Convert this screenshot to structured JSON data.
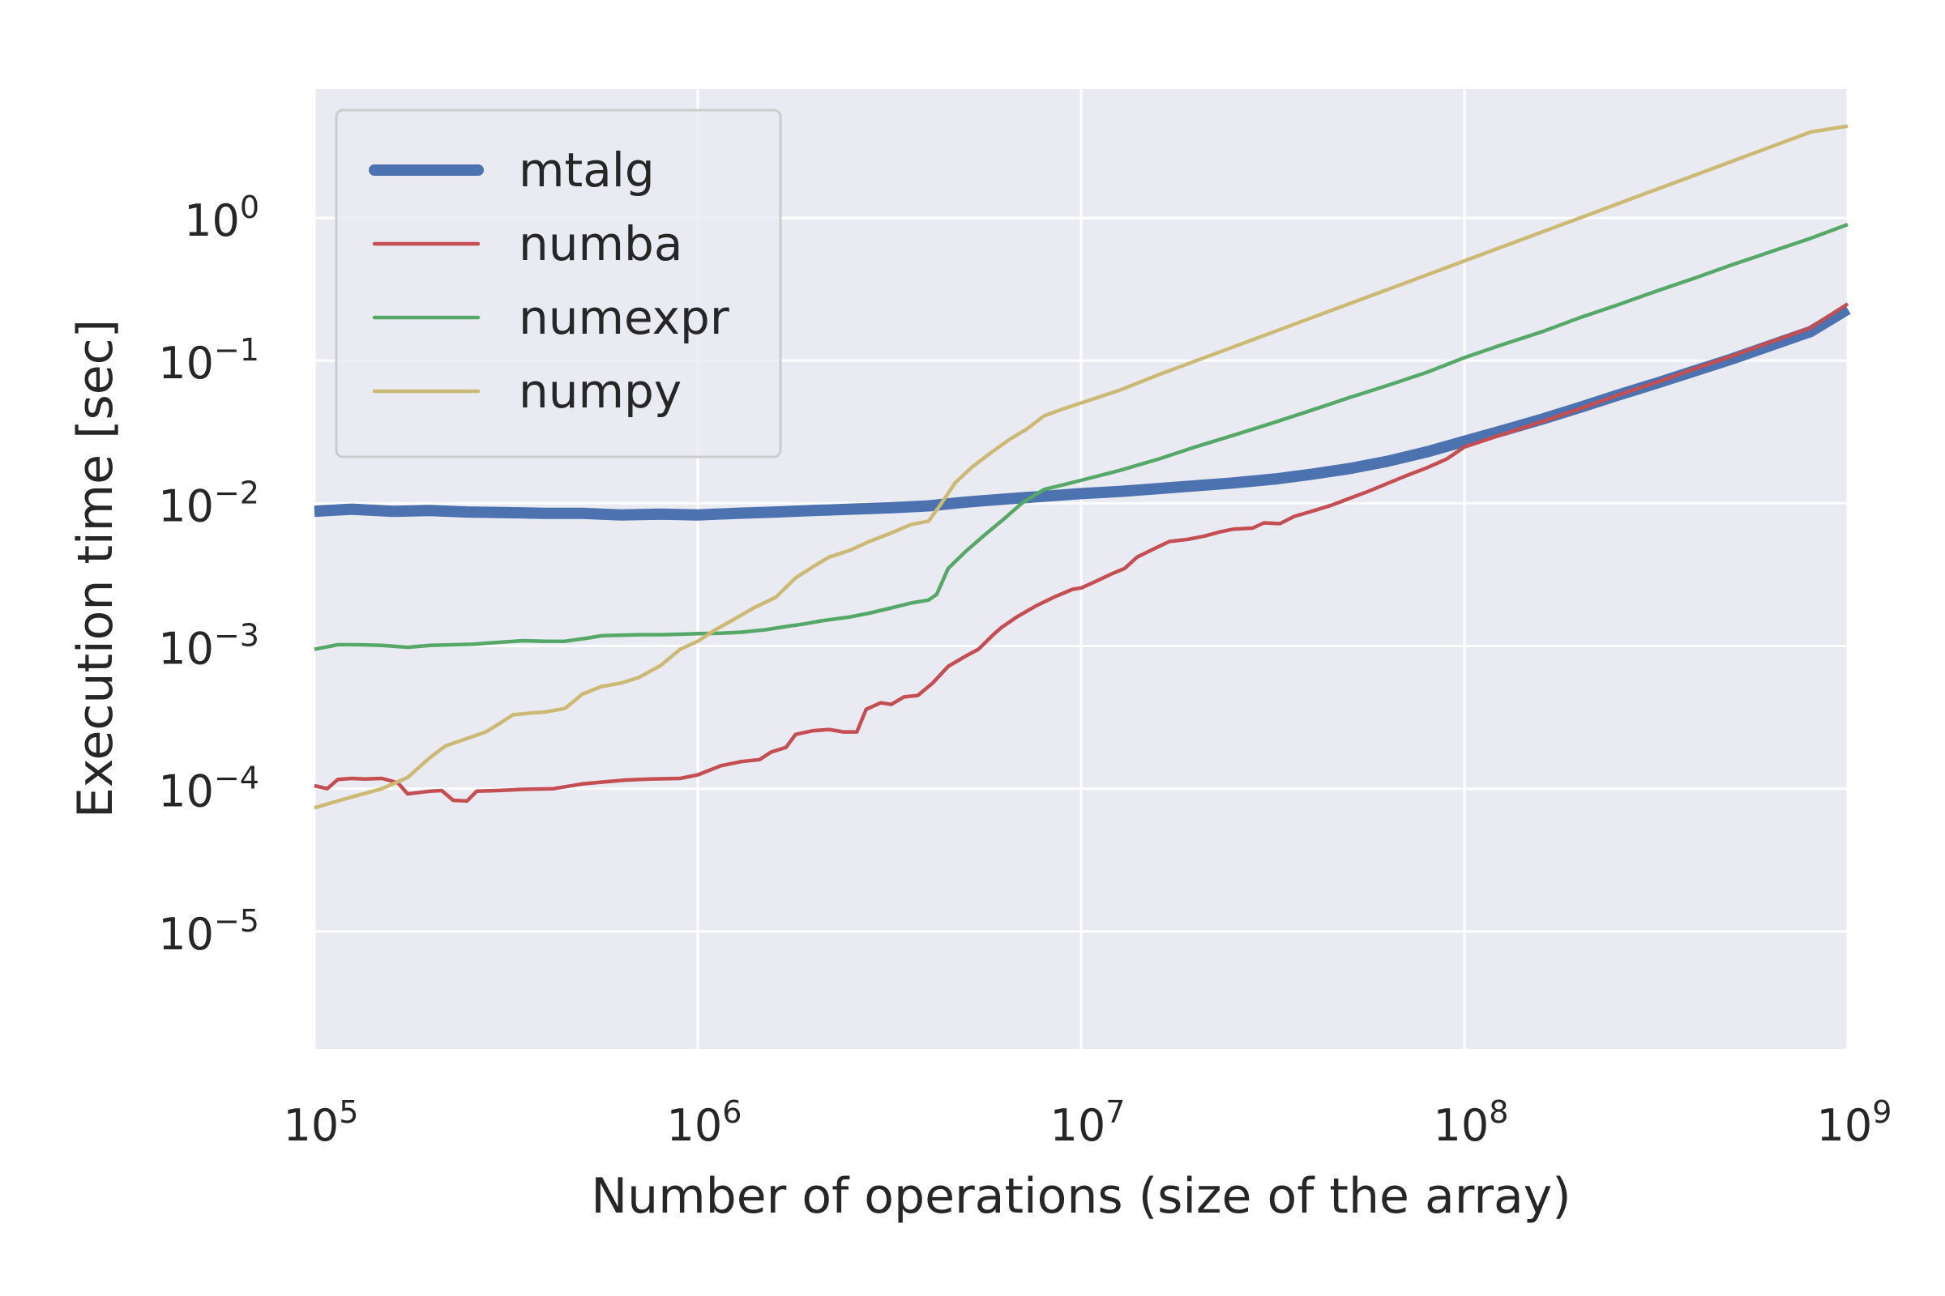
{
  "chart_data": {
    "type": "line",
    "title": "",
    "xlabel": "Number of operations (size of the array)",
    "ylabel": "Execution time [sec]",
    "xscale": "log",
    "yscale": "log",
    "xlim": [
      100000,
      1000000000
    ],
    "ylim": [
      1.5e-06,
      8
    ],
    "grid": true,
    "legend_position": "top-left",
    "x_ticks": [
      {
        "value": 100000,
        "base": "10",
        "exp": "5"
      },
      {
        "value": 1000000,
        "base": "10",
        "exp": "6"
      },
      {
        "value": 10000000,
        "base": "10",
        "exp": "7"
      },
      {
        "value": 100000000,
        "base": "10",
        "exp": "8"
      },
      {
        "value": 1000000000,
        "base": "10",
        "exp": "9"
      }
    ],
    "y_ticks": [
      {
        "value": 1e-05,
        "base": "10",
        "exp": "−5"
      },
      {
        "value": 0.0001,
        "base": "10",
        "exp": "−4"
      },
      {
        "value": 0.001,
        "base": "10",
        "exp": "−3"
      },
      {
        "value": 0.01,
        "base": "10",
        "exp": "−2"
      },
      {
        "value": 0.1,
        "base": "10",
        "exp": "−1"
      },
      {
        "value": 1,
        "base": "10",
        "exp": "0"
      }
    ],
    "series": [
      {
        "name": "mtalg",
        "color": "#4c72b0",
        "width": "thick",
        "points": [
          [
            100000,
            0.0088
          ],
          [
            125000,
            0.0091
          ],
          [
            160000,
            0.0088
          ],
          [
            200000,
            0.0089
          ],
          [
            250000,
            0.0087
          ],
          [
            320000,
            0.0086
          ],
          [
            400000,
            0.0085
          ],
          [
            500000,
            0.0085
          ],
          [
            630000,
            0.0083
          ],
          [
            800000,
            0.0084
          ],
          [
            1000000,
            0.0083
          ],
          [
            1260000,
            0.0085
          ],
          [
            1600000,
            0.0087
          ],
          [
            2000000,
            0.0089
          ],
          [
            2500000,
            0.0091
          ],
          [
            3200000,
            0.0093
          ],
          [
            4000000,
            0.0096
          ],
          [
            5000000,
            0.0102
          ],
          [
            6300000,
            0.0107
          ],
          [
            8000000,
            0.0112
          ],
          [
            10000000,
            0.0117
          ],
          [
            12600000,
            0.0121
          ],
          [
            16000000,
            0.0127
          ],
          [
            20000000,
            0.0133
          ],
          [
            25000000,
            0.0139
          ],
          [
            32000000,
            0.0148
          ],
          [
            40000000,
            0.016
          ],
          [
            50000000,
            0.0175
          ],
          [
            63000000,
            0.0197
          ],
          [
            80000000,
            0.023
          ],
          [
            100000000,
            0.0272
          ],
          [
            126000000,
            0.0324
          ],
          [
            160000000,
            0.039
          ],
          [
            200000000,
            0.047
          ],
          [
            250000000,
            0.057
          ],
          [
            320000000,
            0.07
          ],
          [
            400000000,
            0.085
          ],
          [
            500000000,
            0.103
          ],
          [
            630000000,
            0.128
          ],
          [
            800000000,
            0.16
          ],
          [
            1000000000,
            0.23
          ]
        ]
      },
      {
        "name": "numba",
        "color": "#c44e52",
        "width": "thin",
        "points": [
          [
            100000,
            0.000105
          ],
          [
            108000,
            0.0001
          ],
          [
            115000,
            0.000116
          ],
          [
            125000,
            0.000118
          ],
          [
            135000,
            0.000117
          ],
          [
            150000,
            0.000118
          ],
          [
            165000,
            0.00011
          ],
          [
            175000,
            9.2e-05
          ],
          [
            200000,
            9.6e-05
          ],
          [
            215000,
            9.7e-05
          ],
          [
            230000,
            8.3e-05
          ],
          [
            250000,
            8.2e-05
          ],
          [
            265000,
            9.6e-05
          ],
          [
            300000,
            9.7e-05
          ],
          [
            350000,
            9.9e-05
          ],
          [
            420000,
            0.0001
          ],
          [
            500000,
            0.000108
          ],
          [
            580000,
            0.000112
          ],
          [
            650000,
            0.000115
          ],
          [
            750000,
            0.000117
          ],
          [
            900000,
            0.000118
          ],
          [
            1000000,
            0.000125
          ],
          [
            1150000,
            0.000145
          ],
          [
            1300000,
            0.000155
          ],
          [
            1450000,
            0.00016
          ],
          [
            1550000,
            0.00018
          ],
          [
            1700000,
            0.000195
          ],
          [
            1800000,
            0.00024
          ],
          [
            2000000,
            0.000255
          ],
          [
            2200000,
            0.00026
          ],
          [
            2400000,
            0.00025
          ],
          [
            2600000,
            0.00025
          ],
          [
            2750000,
            0.00036
          ],
          [
            3000000,
            0.0004
          ],
          [
            3200000,
            0.00039
          ],
          [
            3450000,
            0.00044
          ],
          [
            3750000,
            0.00045
          ],
          [
            4100000,
            0.00055
          ],
          [
            4500000,
            0.00072
          ],
          [
            5000000,
            0.00085
          ],
          [
            5400000,
            0.00095
          ],
          [
            5900000,
            0.0012
          ],
          [
            6200000,
            0.00135
          ],
          [
            6800000,
            0.0016
          ],
          [
            7600000,
            0.0019
          ],
          [
            8500000,
            0.0022
          ],
          [
            9500000,
            0.0025
          ],
          [
            10000000,
            0.00255
          ],
          [
            10800000,
            0.0028
          ],
          [
            12000000,
            0.0032
          ],
          [
            13000000,
            0.0035
          ],
          [
            14000000,
            0.0042
          ],
          [
            15500000,
            0.0048
          ],
          [
            17000000,
            0.0054
          ],
          [
            19000000,
            0.0056
          ],
          [
            21000000,
            0.0059
          ],
          [
            23000000,
            0.0063
          ],
          [
            25000000,
            0.0066
          ],
          [
            28000000,
            0.0067
          ],
          [
            30000000,
            0.0073
          ],
          [
            33000000,
            0.0072
          ],
          [
            36000000,
            0.0081
          ],
          [
            40000000,
            0.0088
          ],
          [
            45000000,
            0.0097
          ],
          [
            50000000,
            0.0108
          ],
          [
            56000000,
            0.0121
          ],
          [
            63000000,
            0.0138
          ],
          [
            70000000,
            0.0155
          ],
          [
            80000000,
            0.0178
          ],
          [
            90000000,
            0.0205
          ],
          [
            100000000,
            0.0248
          ],
          [
            126000000,
            0.0305
          ],
          [
            160000000,
            0.0375
          ],
          [
            200000000,
            0.046
          ],
          [
            250000000,
            0.057
          ],
          [
            320000000,
            0.071
          ],
          [
            400000000,
            0.088
          ],
          [
            500000000,
            0.108
          ],
          [
            630000000,
            0.135
          ],
          [
            800000000,
            0.17
          ],
          [
            1000000000,
            0.25
          ]
        ]
      },
      {
        "name": "numexpr",
        "color": "#55a868",
        "width": "thin",
        "points": [
          [
            100000,
            0.00095
          ],
          [
            115000,
            0.00102
          ],
          [
            130000,
            0.00102
          ],
          [
            150000,
            0.00101
          ],
          [
            175000,
            0.00098
          ],
          [
            200000,
            0.00101
          ],
          [
            230000,
            0.00102
          ],
          [
            260000,
            0.00103
          ],
          [
            300000,
            0.00106
          ],
          [
            350000,
            0.00109
          ],
          [
            400000,
            0.00108
          ],
          [
            450000,
            0.00108
          ],
          [
            520000,
            0.00114
          ],
          [
            560000,
            0.00118
          ],
          [
            630000,
            0.00119
          ],
          [
            700000,
            0.0012
          ],
          [
            800000,
            0.0012
          ],
          [
            900000,
            0.00121
          ],
          [
            1000000,
            0.00122
          ],
          [
            1150000,
            0.00123
          ],
          [
            1300000,
            0.00125
          ],
          [
            1500000,
            0.0013
          ],
          [
            1700000,
            0.00137
          ],
          [
            1900000,
            0.00143
          ],
          [
            2100000,
            0.0015
          ],
          [
            2500000,
            0.0016
          ],
          [
            2800000,
            0.0017
          ],
          [
            3200000,
            0.00185
          ],
          [
            3600000,
            0.002
          ],
          [
            4000000,
            0.0021
          ],
          [
            4200000,
            0.0023
          ],
          [
            4500000,
            0.0035
          ],
          [
            5000000,
            0.0046
          ],
          [
            5600000,
            0.006
          ],
          [
            6300000,
            0.0078
          ],
          [
            7000000,
            0.01
          ],
          [
            8000000,
            0.0125
          ],
          [
            9000000,
            0.0135
          ],
          [
            10000000,
            0.0145
          ],
          [
            12600000,
            0.017
          ],
          [
            16000000,
            0.0205
          ],
          [
            20000000,
            0.025
          ],
          [
            25000000,
            0.03
          ],
          [
            32000000,
            0.037
          ],
          [
            40000000,
            0.045
          ],
          [
            50000000,
            0.055
          ],
          [
            63000000,
            0.067
          ],
          [
            80000000,
            0.083
          ],
          [
            100000000,
            0.105
          ],
          [
            126000000,
            0.13
          ],
          [
            160000000,
            0.16
          ],
          [
            200000000,
            0.2
          ],
          [
            250000000,
            0.245
          ],
          [
            320000000,
            0.31
          ],
          [
            400000000,
            0.38
          ],
          [
            500000000,
            0.47
          ],
          [
            630000000,
            0.58
          ],
          [
            800000000,
            0.72
          ],
          [
            1000000000,
            0.9
          ]
        ]
      },
      {
        "name": "numpy",
        "color": "#ccb974",
        "width": "thin",
        "points": [
          [
            100000,
            7.35e-05
          ],
          [
            115000,
            8.2e-05
          ],
          [
            130000,
            9e-05
          ],
          [
            150000,
            0.0001
          ],
          [
            175000,
            0.00012
          ],
          [
            200000,
            0.000165
          ],
          [
            220000,
            0.0002
          ],
          [
            250000,
            0.000225
          ],
          [
            280000,
            0.00025
          ],
          [
            300000,
            0.00028
          ],
          [
            330000,
            0.00033
          ],
          [
            370000,
            0.00034
          ],
          [
            400000,
            0.000345
          ],
          [
            450000,
            0.000365
          ],
          [
            500000,
            0.00046
          ],
          [
            560000,
            0.00052
          ],
          [
            630000,
            0.00055
          ],
          [
            700000,
            0.0006
          ],
          [
            800000,
            0.00073
          ],
          [
            900000,
            0.00095
          ],
          [
            1000000,
            0.00108
          ],
          [
            1100000,
            0.00128
          ],
          [
            1250000,
            0.00155
          ],
          [
            1400000,
            0.00185
          ],
          [
            1600000,
            0.0022
          ],
          [
            1800000,
            0.003
          ],
          [
            2000000,
            0.0036
          ],
          [
            2200000,
            0.0042
          ],
          [
            2500000,
            0.0047
          ],
          [
            2800000,
            0.0054
          ],
          [
            3200000,
            0.0062
          ],
          [
            3600000,
            0.0071
          ],
          [
            4000000,
            0.0075
          ],
          [
            4300000,
            0.0098
          ],
          [
            4700000,
            0.014
          ],
          [
            5200000,
            0.018
          ],
          [
            5800000,
            0.0225
          ],
          [
            6500000,
            0.028
          ],
          [
            7200000,
            0.033
          ],
          [
            8000000,
            0.041
          ],
          [
            9000000,
            0.046
          ],
          [
            10000000,
            0.0505
          ],
          [
            12600000,
            0.062
          ],
          [
            16000000,
            0.08
          ],
          [
            20000000,
            0.1
          ],
          [
            25000000,
            0.125
          ],
          [
            32000000,
            0.16
          ],
          [
            40000000,
            0.2
          ],
          [
            50000000,
            0.25
          ],
          [
            63000000,
            0.315
          ],
          [
            80000000,
            0.4
          ],
          [
            100000000,
            0.5
          ],
          [
            126000000,
            0.63
          ],
          [
            160000000,
            0.8
          ],
          [
            200000000,
            1.0
          ],
          [
            250000000,
            1.25
          ],
          [
            320000000,
            1.6
          ],
          [
            400000000,
            2.0
          ],
          [
            500000000,
            2.5
          ],
          [
            630000000,
            3.15
          ],
          [
            800000000,
            4.0
          ],
          [
            1000000000,
            4.4
          ]
        ]
      }
    ]
  }
}
